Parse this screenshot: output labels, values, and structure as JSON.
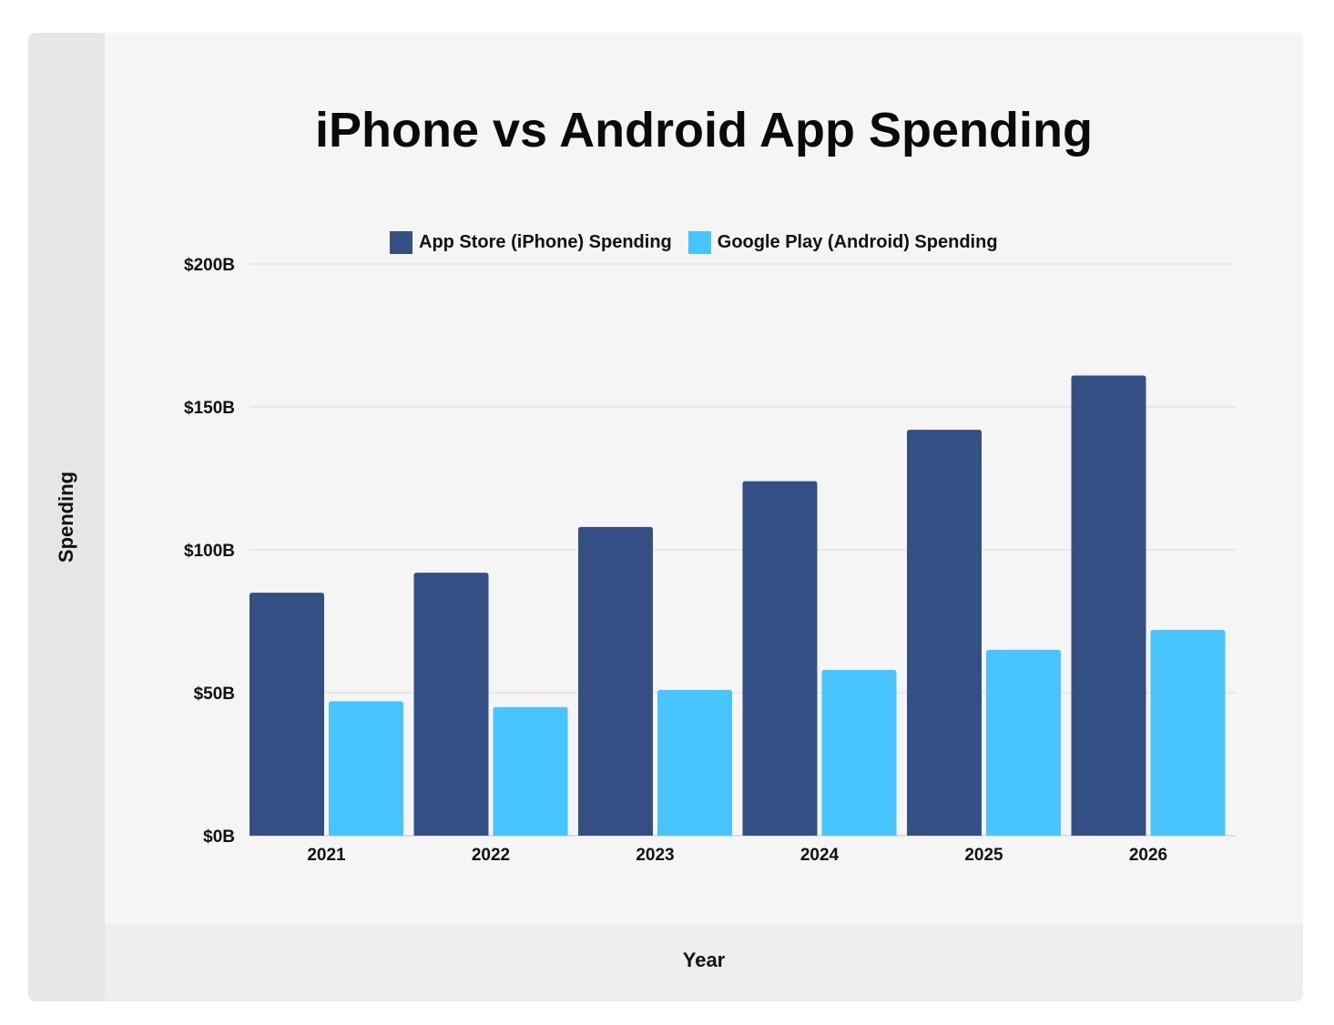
{
  "chart_data": {
    "type": "bar",
    "title": "iPhone vs Android App Spending",
    "xlabel": "Year",
    "ylabel": "Spending",
    "categories": [
      "2021",
      "2022",
      "2023",
      "2024",
      "2025",
      "2026"
    ],
    "series": [
      {
        "name": "App Store (iPhone) Spending",
        "color": "#344f84",
        "values": [
          85,
          92,
          108,
          124,
          142,
          161
        ]
      },
      {
        "name": "Google Play (Android) Spending",
        "color": "#48c4ff",
        "values": [
          47,
          45,
          51,
          58,
          65,
          72
        ]
      }
    ],
    "ylim": [
      0,
      200
    ],
    "yticks": [
      0,
      50,
      100,
      150,
      200
    ],
    "ytick_labels": [
      "$0B",
      "$50B",
      "$100B",
      "$150B",
      "$200B"
    ],
    "grid": true,
    "legend_position": "top-center"
  }
}
